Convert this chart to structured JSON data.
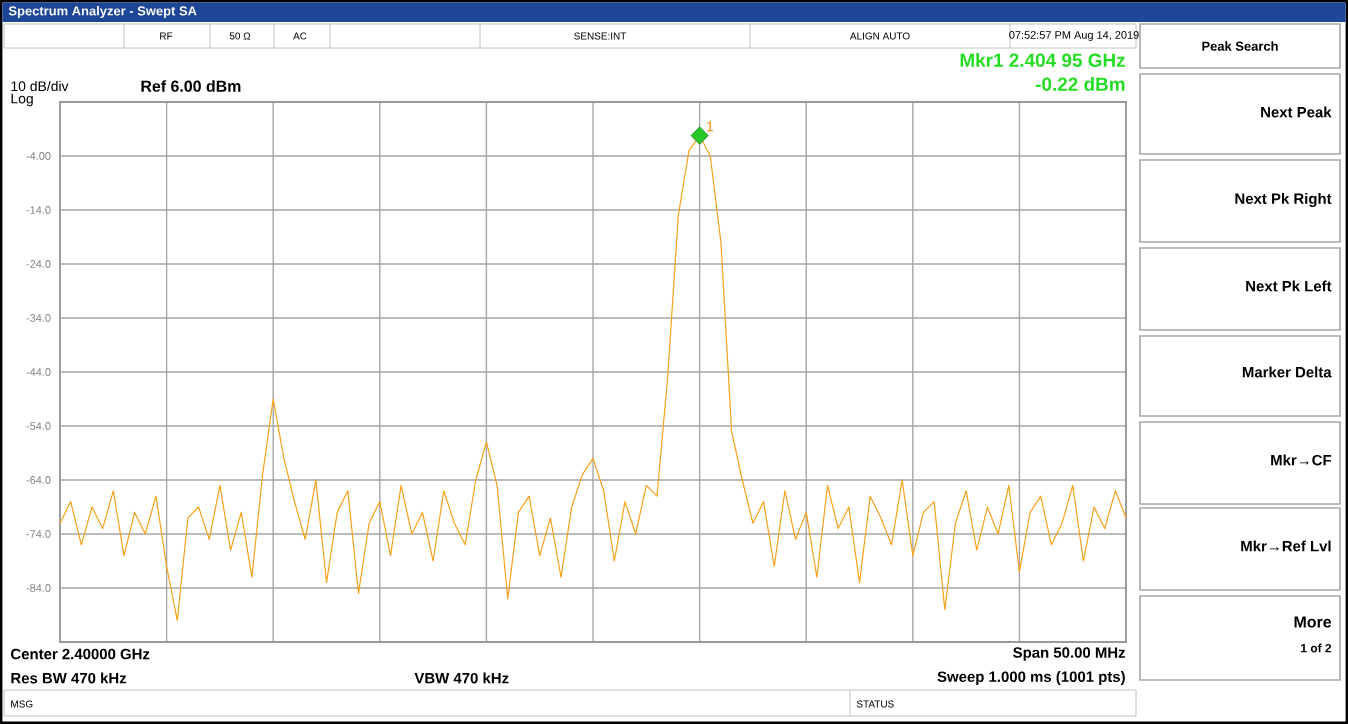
{
  "chart_data": {
    "type": "line",
    "title": "Spectrum Analyzer - Swept SA",
    "categories": [
      null,
      null,
      null,
      null,
      null,
      null,
      null,
      null,
      null,
      null,
      null,
      null,
      null,
      null,
      null,
      null,
      null,
      null,
      null,
      null,
      null,
      null,
      null,
      null,
      null,
      null,
      null,
      null,
      null,
      null,
      null,
      null,
      null,
      null,
      null,
      null,
      null,
      null,
      null,
      null,
      null,
      null,
      null,
      null,
      null,
      null,
      null,
      null,
      null,
      null,
      null,
      null,
      null,
      null,
      null,
      null,
      null,
      null,
      null,
      null,
      null,
      null,
      null,
      null,
      null,
      null,
      null,
      null,
      null,
      null,
      null,
      null,
      null,
      null,
      null,
      null,
      null,
      null,
      null,
      null,
      null,
      null,
      null,
      null,
      null,
      null,
      null,
      null,
      null,
      null,
      null,
      null,
      null,
      null,
      null,
      null,
      null,
      null,
      null,
      null,
      null
    ],
    "series": [
      {
        "color": "#f7a21b",
        "values": [
          -72,
          -68,
          -76,
          -69,
          -73,
          -66,
          -78,
          -70,
          -74,
          -67,
          -80,
          -90,
          -71,
          -69,
          -75,
          -65,
          -77,
          -70,
          -82,
          -63,
          -49,
          -60,
          -68,
          -75,
          -64,
          -83,
          -70,
          -66,
          -85,
          -72,
          -68,
          -78,
          -65,
          -74,
          -70,
          -79,
          -66,
          -72,
          -76,
          -64,
          -57,
          -65,
          -86,
          -70,
          -67,
          -78,
          -71,
          -82,
          -69,
          -63,
          -60,
          -66,
          -79,
          -68,
          -74,
          -65,
          -67,
          -45,
          -15,
          -3,
          -0.22,
          -4,
          -20,
          -55,
          -64,
          -72,
          -68,
          -80,
          -66,
          -75,
          -70,
          -82,
          -65,
          -73,
          -69,
          -83,
          -67,
          -71,
          -76,
          -64,
          -78,
          -70,
          -68,
          -88,
          -72,
          -66,
          -77,
          -69,
          -74,
          -65,
          -81,
          -70,
          -67,
          -76,
          -72,
          -65,
          -79,
          -69,
          -73,
          -66,
          -71
        ]
      }
    ],
    "ylim": [
      -94,
      6
    ],
    "yticks": [
      {
        "value": -94,
        "label": null
      },
      {
        "value": -84,
        "label": "-84.0"
      },
      {
        "value": -74,
        "label": "-74.0"
      },
      {
        "value": -64,
        "label": "-64.0"
      },
      {
        "value": -54,
        "label": "-54.0"
      },
      {
        "value": -44,
        "label": "-44.0"
      },
      {
        "value": -34,
        "label": "-34.0"
      },
      {
        "value": -24,
        "label": "-24.0"
      },
      {
        "value": -14,
        "label": "-14.0"
      },
      {
        "value": -4,
        "label": "-4.00"
      },
      {
        "value": 6,
        "label": null
      }
    ],
    "grid": true,
    "annotations": [
      "RF",
      "50 Ω",
      "AC",
      "SENSE:INT",
      "ALIGN AUTO",
      "07:52:57 PM Aug 14, 2019",
      "10 dB/div",
      "Log",
      "Ref 6.00 dBm",
      "Mkr1 2.404 95 GHz",
      "-0.22 dBm",
      "Center 2.40000 GHz",
      "Res BW 470 kHz",
      "VBW 470 kHz",
      "Span 50.00 MHz",
      "Sweep  1.000 ms (1001 pts)",
      "MSG",
      "STATUS",
      "Peak Search",
      "Next Peak",
      "Next Pk Right",
      "Next Pk Left",
      "Marker Delta",
      "Mkr→CF",
      "Mkr→Ref Lvl",
      "More",
      "1 of 2",
      {
        "text": "1",
        "y": -0.22
      }
    ]
  }
}
